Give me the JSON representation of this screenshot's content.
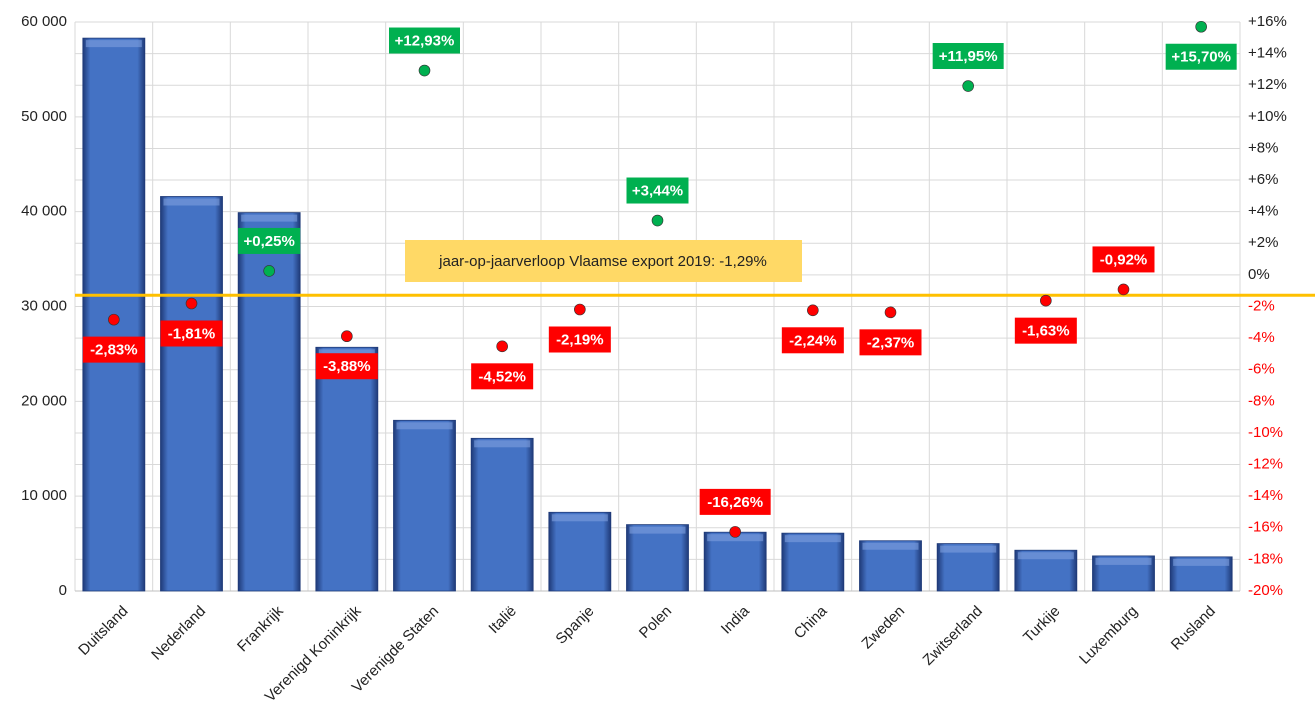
{
  "chart_data": {
    "type": "bar",
    "categories": [
      "Duitsland",
      "Nederland",
      "Frankrijk",
      "Verenigd Koninkrijk",
      "Verenigde Staten",
      "Italië",
      "Spanje",
      "Polen",
      "India",
      "China",
      "Zweden",
      "Zwitserland",
      "Turkije",
      "Luxemburg",
      "Rusland"
    ],
    "series": [
      {
        "type": "bar",
        "axis": "y",
        "color": "#4472c4",
        "values": [
          58300,
          41600,
          39900,
          25700,
          18000,
          16100,
          8300,
          7000,
          6200,
          6100,
          5300,
          5000,
          4300,
          3700,
          3600
        ]
      },
      {
        "type": "scatter",
        "axis": "y2",
        "color": "#ff0000",
        "positive_color": "#00b050",
        "values": [
          -2.83,
          -1.81,
          0.25,
          -3.88,
          12.93,
          -4.52,
          -2.19,
          3.44,
          -16.26,
          -2.24,
          -2.37,
          11.95,
          -1.63,
          -0.92,
          15.7
        ],
        "value_labels": [
          "-2,83%",
          "-1,81%",
          "+0,25%",
          "-3,88%",
          "+12,93%",
          "-4,52%",
          "-2,19%",
          "+3,44%",
          "-16,26%",
          "-2,24%",
          "-2,37%",
          "+11,95%",
          "-1,63%",
          "-0,92%",
          "+15,70%"
        ]
      }
    ],
    "ylim": [
      0,
      60000
    ],
    "yticks": [
      {
        "value": 0,
        "label": "0"
      },
      {
        "value": 10000,
        "label": "10 000"
      },
      {
        "value": 20000,
        "label": "20 000"
      },
      {
        "value": 30000,
        "label": "30 000"
      },
      {
        "value": 40000,
        "label": "40 000"
      },
      {
        "value": 50000,
        "label": "50 000"
      },
      {
        "value": 60000,
        "label": "60 000"
      }
    ],
    "y2lim": [
      -20,
      16
    ],
    "y2ticks": [
      {
        "value": -20,
        "label": "-20%"
      },
      {
        "value": -18,
        "label": "-18%"
      },
      {
        "value": -16,
        "label": "-16%"
      },
      {
        "value": -14,
        "label": "-14%"
      },
      {
        "value": -12,
        "label": "-12%"
      },
      {
        "value": -10,
        "label": "-10%"
      },
      {
        "value": -8,
        "label": "-8%"
      },
      {
        "value": -6,
        "label": "-6%"
      },
      {
        "value": -4,
        "label": "-4%"
      },
      {
        "value": -2,
        "label": "-2%"
      },
      {
        "value": 0,
        "label": "0%"
      },
      {
        "value": 2,
        "label": "+2%"
      },
      {
        "value": 4,
        "label": "+4%"
      },
      {
        "value": 6,
        "label": "+6%"
      },
      {
        "value": 8,
        "label": "+8%"
      },
      {
        "value": 10,
        "label": "+10%"
      },
      {
        "value": 12,
        "label": "+12%"
      },
      {
        "value": 14,
        "label": "+14%"
      },
      {
        "value": 16,
        "label": "+16%"
      }
    ],
    "grid": true,
    "reference_line": {
      "value": -1.29,
      "axis": "y2",
      "color": "#ffc000",
      "label": "jaar-op-jaarverloop Vlaamse export 2019:  -1,29%",
      "label_color": "#ffd966"
    }
  }
}
